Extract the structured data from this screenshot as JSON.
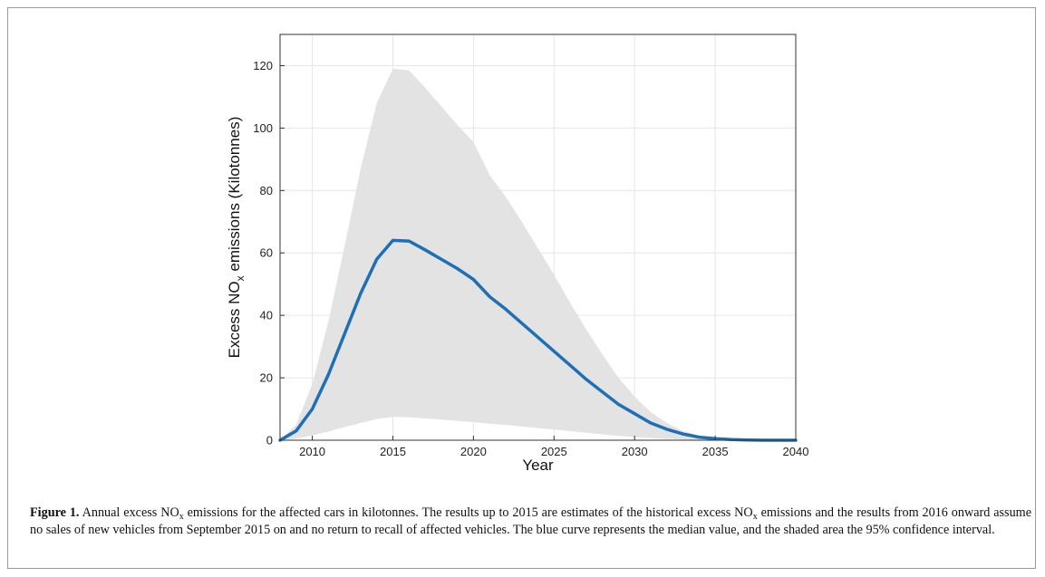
{
  "chart_data": {
    "type": "area",
    "xlabel": "Year",
    "ylabel_prefix": "Excess NO",
    "ylabel_sub": "x",
    "ylabel_suffix": " emissions (Kilotonnes)",
    "xlim": [
      2008,
      2040
    ],
    "ylim": [
      0,
      130
    ],
    "x_ticks": [
      2010,
      2015,
      2020,
      2025,
      2030,
      2035,
      2040
    ],
    "y_ticks": [
      0,
      20,
      40,
      60,
      80,
      100,
      120
    ],
    "grid": true,
    "x": [
      2008,
      2009,
      2010,
      2011,
      2012,
      2013,
      2014,
      2015,
      2016,
      2017,
      2018,
      2019,
      2020,
      2021,
      2022,
      2023,
      2024,
      2025,
      2026,
      2027,
      2028,
      2029,
      2030,
      2031,
      2032,
      2033,
      2034,
      2035,
      2036,
      2037,
      2038,
      2039,
      2040
    ],
    "series": [
      {
        "role": "median",
        "color": "#1f6fb5",
        "values": [
          0,
          3,
          10,
          21,
          34,
          47,
          58,
          64,
          63.8,
          61,
          58,
          55,
          51.5,
          46,
          42,
          37.5,
          33,
          28.5,
          24,
          19.5,
          15.5,
          11.5,
          8.5,
          5.5,
          3.5,
          2,
          1,
          0.5,
          0.2,
          0.1,
          0,
          0,
          0
        ]
      },
      {
        "role": "confidence-interval-95",
        "color": "#e3e3e3",
        "upper": [
          0,
          5,
          18,
          38,
          62,
          87,
          108,
          119,
          118.5,
          113,
          107,
          101,
          95.5,
          85,
          78,
          70,
          61.5,
          53,
          44,
          35.5,
          27.5,
          20,
          14,
          9,
          5.5,
          3,
          1.5,
          0.7,
          0.3,
          0.1,
          0,
          0,
          0
        ],
        "lower": [
          0,
          0.5,
          1.5,
          2.8,
          4.2,
          5.5,
          6.8,
          7.5,
          7.3,
          7,
          6.6,
          6.2,
          5.8,
          5.3,
          4.9,
          4.4,
          3.9,
          3.4,
          2.9,
          2.4,
          1.9,
          1.4,
          1,
          0.7,
          0.4,
          0.2,
          0.1,
          0,
          0,
          0,
          0,
          0,
          0
        ]
      }
    ]
  },
  "caption": {
    "label": "Figure 1.",
    "t1": "  Annual excess NO",
    "s1": "x",
    "t2": " emissions for the affected cars in kilotonnes. The results up to 2015 are estimates of the historical excess NO",
    "s2": "x",
    "t3": " emissions and the results from 2016 onward assume no sales of new vehicles from September 2015 on and no return to recall of affected vehicles. The blue curve represents the median value, and the shaded area the 95% confidence interval."
  }
}
